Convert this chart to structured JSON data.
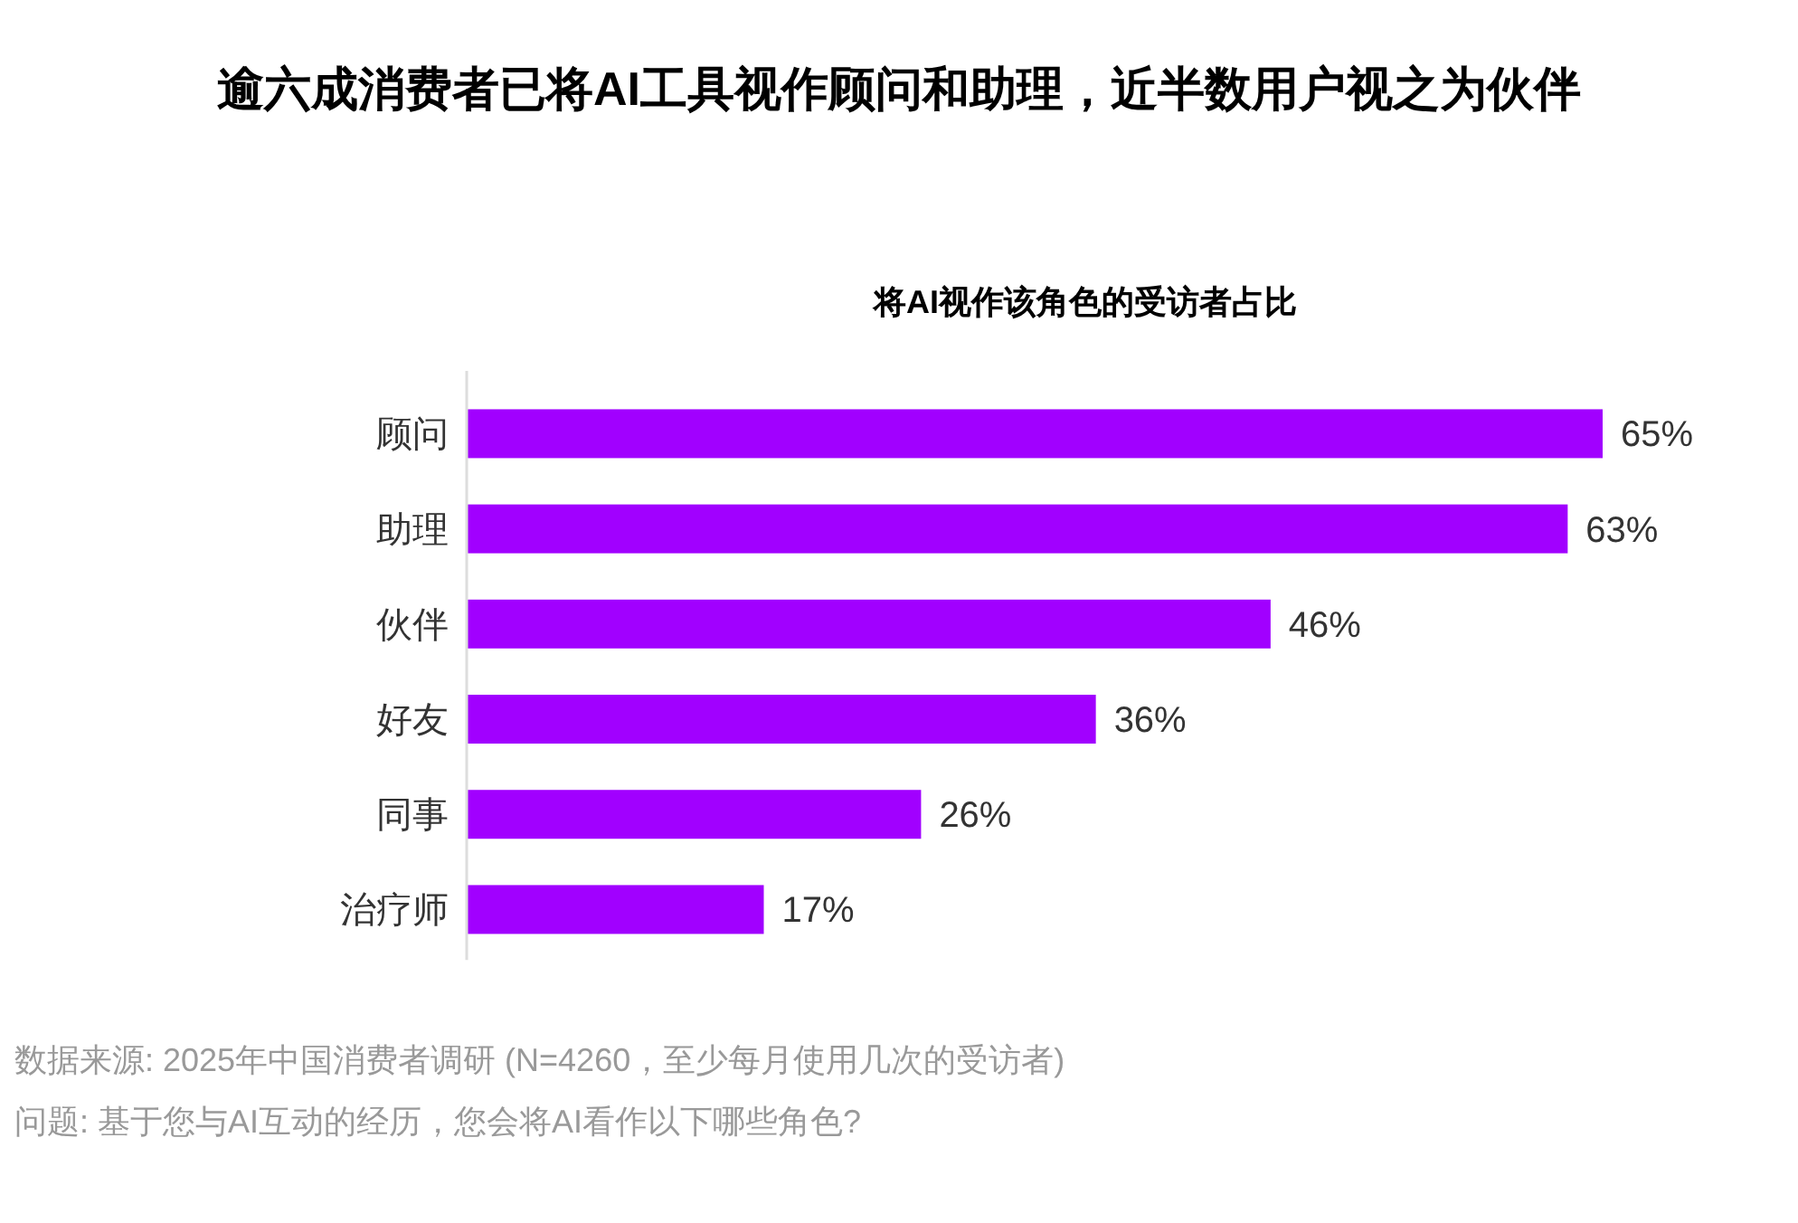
{
  "chart_data": {
    "type": "bar",
    "orientation": "horizontal",
    "title": "逾六成消费者已将AI工具视作顾问和助理，近半数用户视之为伙伴",
    "subtitle": "将AI视作该角色的受访者占比",
    "categories": [
      "顾问",
      "助理",
      "伙伴",
      "好友",
      "同事",
      "治疗师"
    ],
    "values": [
      65,
      63,
      46,
      36,
      26,
      17
    ],
    "value_labels": [
      "65%",
      "63%",
      "46%",
      "36%",
      "26%",
      "17%"
    ],
    "color": "#a100ff",
    "annotations": [
      "数据来源: 2025年中国消费者调研 (N=4260，至少每月使用几次的受访者)",
      "问题: 基于您与AI互动的经历，您会将AI看作以下哪些角色?"
    ]
  }
}
